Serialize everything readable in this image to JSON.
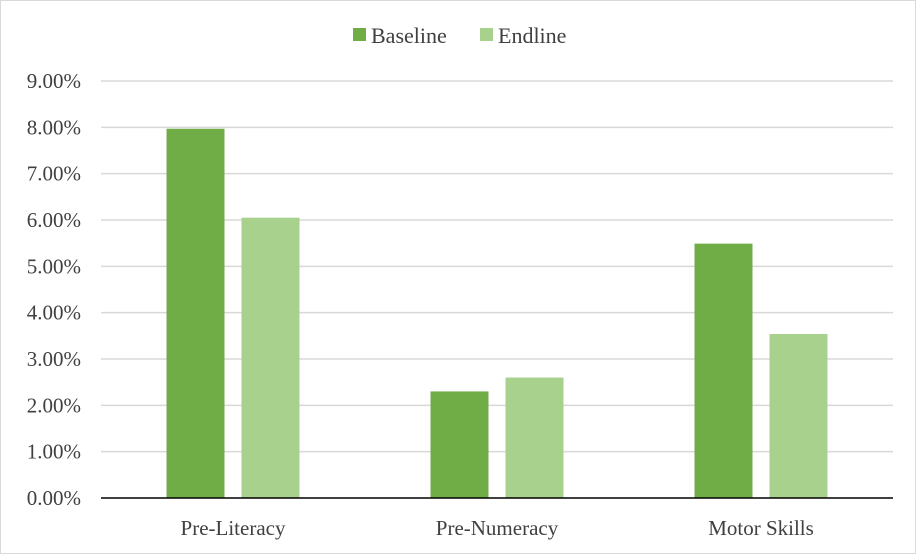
{
  "chart_data": {
    "type": "bar",
    "title": "",
    "xlabel": "",
    "ylabel": "",
    "categories": [
      "Pre-Literacy",
      "Pre-Numeracy",
      "Motor Skills"
    ],
    "series": [
      {
        "name": "Baseline",
        "values": [
          0.0797,
          0.023,
          0.0549
        ],
        "color": "#70ad47"
      },
      {
        "name": "Endline",
        "values": [
          0.0605,
          0.026,
          0.0354
        ],
        "color": "#a9d18e"
      }
    ],
    "ylim": [
      0,
      0.09
    ],
    "yticks": [
      0,
      0.01,
      0.02,
      0.03,
      0.04,
      0.05,
      0.06,
      0.07,
      0.08,
      0.09
    ],
    "ytick_labels": [
      "0.00%",
      "1.00%",
      "2.00%",
      "3.00%",
      "4.00%",
      "5.00%",
      "6.00%",
      "7.00%",
      "8.00%",
      "9.00%"
    ],
    "grid": true,
    "legend_position": "top-center",
    "colors": {
      "gridline": "#d9d9d9",
      "axis": "#000000",
      "text": "#404040",
      "border": "#d9d9d9"
    }
  }
}
